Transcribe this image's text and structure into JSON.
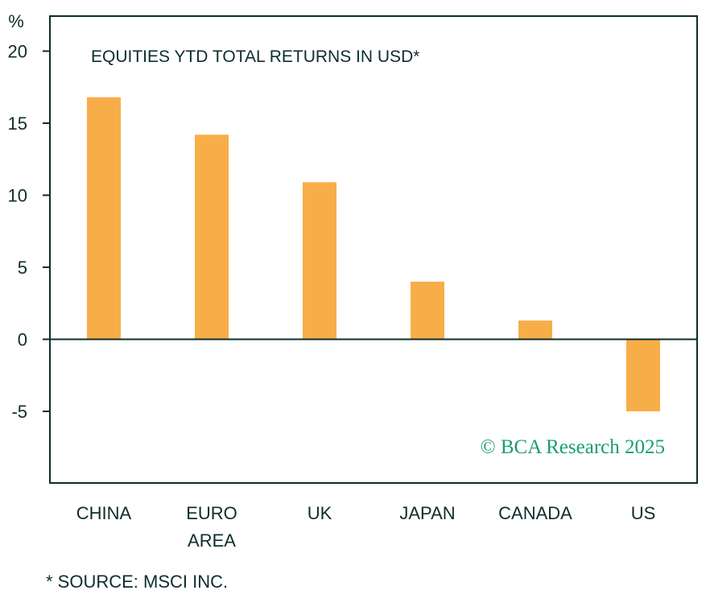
{
  "chart_data": {
    "type": "bar",
    "title": "EQUITIES YTD TOTAL RETURNS IN USD*",
    "ylabel": "%",
    "ylim": [
      -10,
      22
    ],
    "yticks": [
      20,
      15,
      10,
      5,
      0,
      -5
    ],
    "categories": [
      [
        "CHINA"
      ],
      [
        "EURO",
        "AREA"
      ],
      [
        "UK"
      ],
      [
        "JAPAN"
      ],
      [
        "CANADA"
      ],
      [
        "US"
      ]
    ],
    "values": [
      16.8,
      14.2,
      10.9,
      4.0,
      1.3,
      -5.0
    ],
    "bar_color": "#f8ae48",
    "grid": false,
    "legend": "none"
  },
  "watermark": "© BCA Research 2025",
  "footnote": "* SOURCE: MSCI INC."
}
